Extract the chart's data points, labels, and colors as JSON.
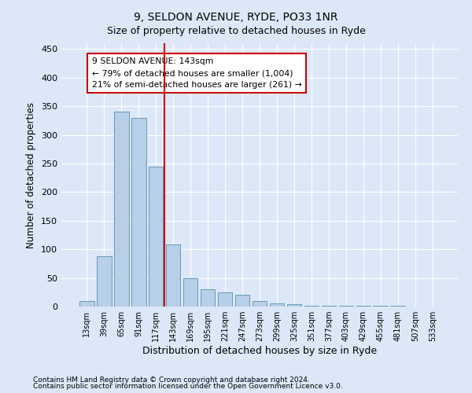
{
  "title1": "9, SELDON AVENUE, RYDE, PO33 1NR",
  "title2": "Size of property relative to detached houses in Ryde",
  "xlabel": "Distribution of detached houses by size in Ryde",
  "ylabel": "Number of detached properties",
  "categories": [
    "13sqm",
    "39sqm",
    "65sqm",
    "91sqm",
    "117sqm",
    "143sqm",
    "169sqm",
    "195sqm",
    "221sqm",
    "247sqm",
    "273sqm",
    "299sqm",
    "325sqm",
    "351sqm",
    "377sqm",
    "403sqm",
    "429sqm",
    "455sqm",
    "481sqm",
    "507sqm",
    "533sqm"
  ],
  "values": [
    10,
    88,
    340,
    330,
    245,
    108,
    50,
    30,
    25,
    20,
    10,
    5,
    4,
    2,
    1,
    1,
    1,
    1,
    1,
    0,
    0
  ],
  "bar_color": "#b8cfe8",
  "bar_edge_color": "#6699bb",
  "vline_x": 5,
  "vline_color": "#cc0000",
  "annotation_text": "9 SELDON AVENUE: 143sqm\n← 79% of detached houses are smaller (1,004)\n21% of semi-detached houses are larger (261) →",
  "annotation_box_color": "#ffffff",
  "annotation_box_edge": "#cc0000",
  "ylim": [
    0,
    460
  ],
  "yticks": [
    0,
    50,
    100,
    150,
    200,
    250,
    300,
    350,
    400,
    450
  ],
  "footer1": "Contains HM Land Registry data © Crown copyright and database right 2024.",
  "footer2": "Contains public sector information licensed under the Open Government Licence v3.0.",
  "bg_color": "#dce8f8",
  "plot_bg_color": "#dce8f8",
  "fig_width": 6.0,
  "fig_height": 5.0,
  "dpi": 100
}
